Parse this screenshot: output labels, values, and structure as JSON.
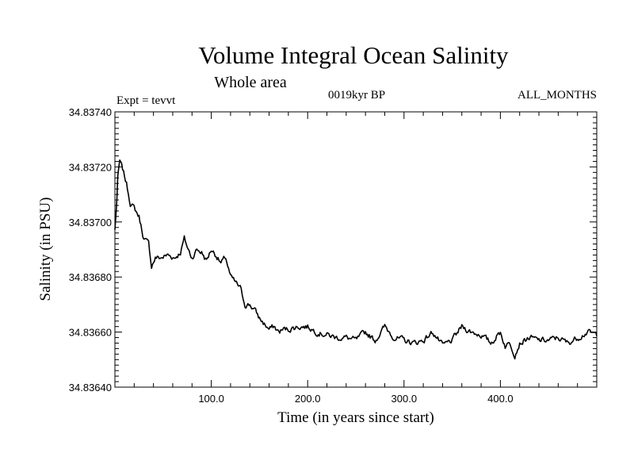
{
  "chart_data": {
    "type": "line",
    "title": "Volume Integral Ocean Salinity",
    "subtitle": "Whole area",
    "expt_label": "Expt = tevvt",
    "period_label": "0019kyr BP",
    "months_label": "ALL_MONTHS",
    "xlabel": "Time (in years since start)",
    "ylabel": "Salinity (in PSU)",
    "xlim": [
      0,
      500
    ],
    "ylim": [
      34.8364,
      34.8374
    ],
    "x_ticks": [
      100,
      200,
      300,
      400
    ],
    "x_tick_labels": [
      "100.0",
      "200.0",
      "300.0",
      "400.0"
    ],
    "y_ticks": [
      34.8364,
      34.8366,
      34.8368,
      34.837,
      34.8372,
      34.8374
    ],
    "y_tick_labels": [
      "34.83640",
      "34.83660",
      "34.83680",
      "34.83700",
      "34.83720",
      "34.83740"
    ],
    "grid": false,
    "series": [
      {
        "x": [
          0,
          2,
          3,
          5,
          8,
          12,
          16,
          20,
          25,
          30,
          35,
          38,
          42,
          48,
          55,
          62,
          68,
          72,
          76,
          80,
          85,
          90,
          95,
          100,
          105,
          110,
          115,
          120,
          125,
          130,
          135,
          140,
          145,
          150,
          155,
          160,
          165,
          170,
          175,
          180,
          190,
          200,
          210,
          220,
          230,
          240,
          250,
          260,
          270,
          280,
          290,
          300,
          310,
          320,
          330,
          340,
          350,
          360,
          370,
          380,
          390,
          400,
          405,
          410,
          415,
          420,
          430,
          440,
          450,
          460,
          470,
          480,
          490,
          500
        ],
        "y": [
          34.83697,
          34.83708,
          34.83716,
          34.83722,
          34.83719,
          34.83714,
          34.83707,
          34.83705,
          34.83702,
          34.83694,
          34.83692,
          34.83684,
          34.83687,
          34.83687,
          34.83688,
          34.83687,
          34.83689,
          34.83694,
          34.8369,
          34.83687,
          34.8369,
          34.83689,
          34.83686,
          34.8369,
          34.83688,
          34.83685,
          34.83687,
          34.8368,
          34.83678,
          34.83676,
          34.8367,
          34.8367,
          34.83668,
          34.83665,
          34.83663,
          34.83661,
          34.83662,
          34.8366,
          34.83661,
          34.83661,
          34.83662,
          34.83662,
          34.8366,
          34.83659,
          34.83658,
          34.83658,
          34.83657,
          34.8366,
          34.83657,
          34.83662,
          34.83658,
          34.83657,
          34.83656,
          34.83657,
          34.8366,
          34.83655,
          34.83657,
          34.83662,
          34.8366,
          34.83659,
          34.83656,
          34.8366,
          34.83655,
          34.83656,
          34.83652,
          34.83656,
          34.83658,
          34.83657,
          34.83657,
          34.83658,
          34.83656,
          34.83658,
          34.8366,
          34.83659
        ]
      }
    ]
  }
}
